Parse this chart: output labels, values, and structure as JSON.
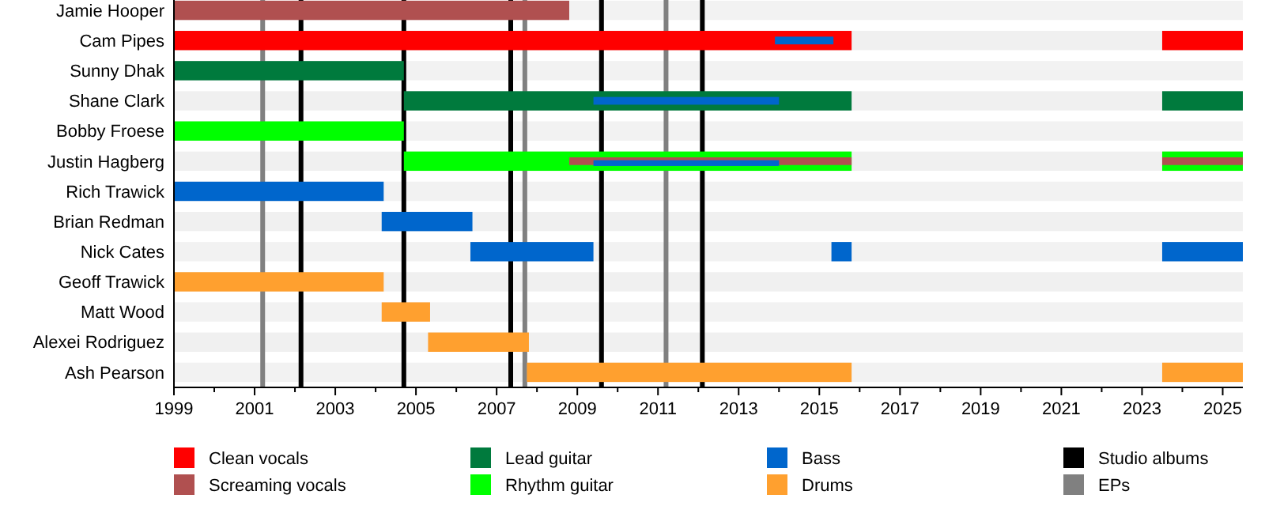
{
  "chart_data": {
    "type": "bar",
    "orientation": "horizontal",
    "legend": "bottom",
    "categories": [
      "Jamie Hooper",
      "Cam Pipes",
      "Sunny Dhak",
      "Shane Clark",
      "Bobby Froese",
      "Justin Hagberg",
      "Rich Trawick",
      "Brian Redman",
      "Nick Cates",
      "Geoff Trawick",
      "Matt Wood",
      "Alexei Rodriguez",
      "Ash Pearson"
    ],
    "xlim": [
      1999,
      2025.5
    ],
    "xticks": [
      1999,
      {
        "value": 2000,
        "label": null
      },
      2001,
      {
        "value": 2002,
        "label": null
      },
      2003,
      {
        "value": 2004,
        "label": null
      },
      2005,
      {
        "value": 2006,
        "label": null
      },
      2007,
      {
        "value": 2008,
        "label": null
      },
      2009,
      {
        "value": 2010,
        "label": null
      },
      2011,
      {
        "value": 2012,
        "label": null
      },
      2013,
      {
        "value": 2014,
        "label": null
      },
      2015,
      {
        "value": 2016,
        "label": null
      },
      2017,
      {
        "value": 2018,
        "label": null
      },
      2019,
      {
        "value": 2020,
        "label": null
      },
      2021,
      {
        "value": 2022,
        "label": null
      },
      2023,
      {
        "value": 2024,
        "label": null
      },
      2025
    ],
    "series": [
      {
        "name": "Clean vocals",
        "color": "#ff0000",
        "base": [
          null,
          1999,
          null,
          null,
          null,
          null,
          null,
          null,
          null,
          null,
          null,
          null,
          null
        ],
        "values": [
          null,
          16.8,
          null,
          null,
          null,
          null,
          null,
          null,
          null,
          null,
          null,
          null,
          null
        ]
      },
      {
        "color": "#ff0000",
        "base": [
          null,
          2023.5,
          null,
          null,
          null,
          null,
          null,
          null,
          null,
          null,
          null,
          null,
          null
        ],
        "values": [
          null,
          2,
          null,
          null,
          null,
          null,
          null,
          null,
          null,
          null,
          null,
          null,
          null
        ]
      },
      {
        "name": "Screaming vocals",
        "color": "#b05050",
        "base": [
          1999,
          null,
          null,
          null,
          null,
          null,
          null,
          null,
          null,
          null,
          null,
          null,
          null
        ],
        "values": [
          9.8,
          null,
          null,
          null,
          null,
          null,
          null,
          null,
          null,
          null,
          null,
          null,
          null
        ]
      },
      {
        "name": "Lead guitar",
        "color": "#007a3d",
        "base": [
          null,
          null,
          1999,
          2004.7,
          null,
          null,
          null,
          null,
          null,
          null,
          null,
          null,
          null
        ],
        "values": [
          null,
          null,
          5.7,
          11.1,
          null,
          null,
          null,
          null,
          null,
          null,
          null,
          null,
          null
        ]
      },
      {
        "color": "#007a3d",
        "base": [
          null,
          null,
          null,
          2023.5,
          null,
          null,
          null,
          null,
          null,
          null,
          null,
          null,
          null
        ],
        "values": [
          null,
          null,
          null,
          2,
          null,
          null,
          null,
          null,
          null,
          null,
          null,
          null,
          null
        ]
      },
      {
        "name": "Rhythm guitar",
        "color": "#00ff00",
        "base": [
          null,
          null,
          null,
          null,
          1999,
          2004.7,
          null,
          null,
          null,
          null,
          null,
          null,
          null
        ],
        "values": [
          null,
          null,
          null,
          null,
          5.7,
          11.1,
          null,
          null,
          null,
          null,
          null,
          null,
          null
        ]
      },
      {
        "color": "#00ff00",
        "base": [
          null,
          null,
          null,
          null,
          null,
          2023.5,
          null,
          null,
          null,
          null,
          null,
          null,
          null
        ],
        "values": [
          null,
          null,
          null,
          null,
          null,
          2,
          null,
          null,
          null,
          null,
          null,
          null,
          null
        ]
      },
      {
        "color": "#b05050",
        "base": [
          null,
          null,
          null,
          null,
          null,
          2008.8,
          null,
          null,
          null,
          null,
          null,
          null,
          null
        ],
        "values": [
          null,
          null,
          null,
          null,
          null,
          7,
          null,
          null,
          null,
          null,
          null,
          null,
          null
        ]
      },
      {
        "color": "#b05050",
        "base": [
          null,
          null,
          null,
          null,
          null,
          2023.5,
          null,
          null,
          null,
          null,
          null,
          null,
          null
        ],
        "values": [
          null,
          null,
          null,
          null,
          null,
          2,
          null,
          null,
          null,
          null,
          null,
          null,
          null
        ]
      },
      {
        "name": "Bass",
        "color": "#0066cc",
        "base": [
          null,
          2013.9,
          null,
          2009.4,
          null,
          2009.4,
          1999,
          2004.15,
          2006.35,
          null,
          null,
          null,
          null
        ],
        "values": [
          null,
          1.45,
          null,
          4.6,
          null,
          4.6,
          5.2,
          2.25,
          3.05,
          null,
          null,
          null,
          null
        ]
      },
      {
        "color": "#0066cc",
        "base": [
          null,
          null,
          null,
          null,
          null,
          null,
          null,
          null,
          2015.3,
          null,
          null,
          null,
          null
        ],
        "values": [
          null,
          null,
          null,
          null,
          null,
          null,
          null,
          null,
          0.5,
          null,
          null,
          null,
          null
        ]
      },
      {
        "color": "#0066cc",
        "base": [
          null,
          null,
          null,
          null,
          null,
          null,
          null,
          null,
          2023.5,
          null,
          null,
          null,
          null
        ],
        "values": [
          null,
          null,
          null,
          null,
          null,
          null,
          null,
          null,
          2,
          null,
          null,
          null,
          null
        ]
      },
      {
        "name": "Drums",
        "color": "#ffa02f",
        "base": [
          null,
          null,
          null,
          null,
          null,
          null,
          null,
          null,
          null,
          1999,
          2004.15,
          2005.3,
          2007.75
        ],
        "values": [
          null,
          null,
          null,
          null,
          null,
          null,
          null,
          null,
          null,
          5.2,
          1.2,
          2.5,
          8.05
        ]
      },
      {
        "color": "#ffa02f",
        "base": [
          null,
          null,
          null,
          null,
          null,
          null,
          null,
          null,
          null,
          null,
          null,
          null,
          2023.5
        ],
        "values": [
          null,
          null,
          null,
          null,
          null,
          null,
          null,
          null,
          null,
          null,
          null,
          null,
          2
        ]
      }
    ],
    "ref_lines": [
      {
        "axis": "x",
        "value": 2002.15,
        "label": "Studio albums",
        "color": "#000000"
      },
      {
        "axis": "x",
        "value": 2001.2,
        "label": "EPs",
        "color": "#808080"
      },
      {
        "axis": "x",
        "value": 2004.7,
        "color": "#000000"
      },
      {
        "axis": "x",
        "value": 2007.35,
        "color": "#000000"
      },
      {
        "axis": "x",
        "value": 2007.7,
        "color": "#808080"
      },
      {
        "axis": "x",
        "value": 2009.6,
        "color": "#000000"
      },
      {
        "axis": "x",
        "value": 2011.2,
        "color": "#808080"
      },
      {
        "axis": "x",
        "value": 2012.1,
        "color": "#000000"
      }
    ]
  }
}
